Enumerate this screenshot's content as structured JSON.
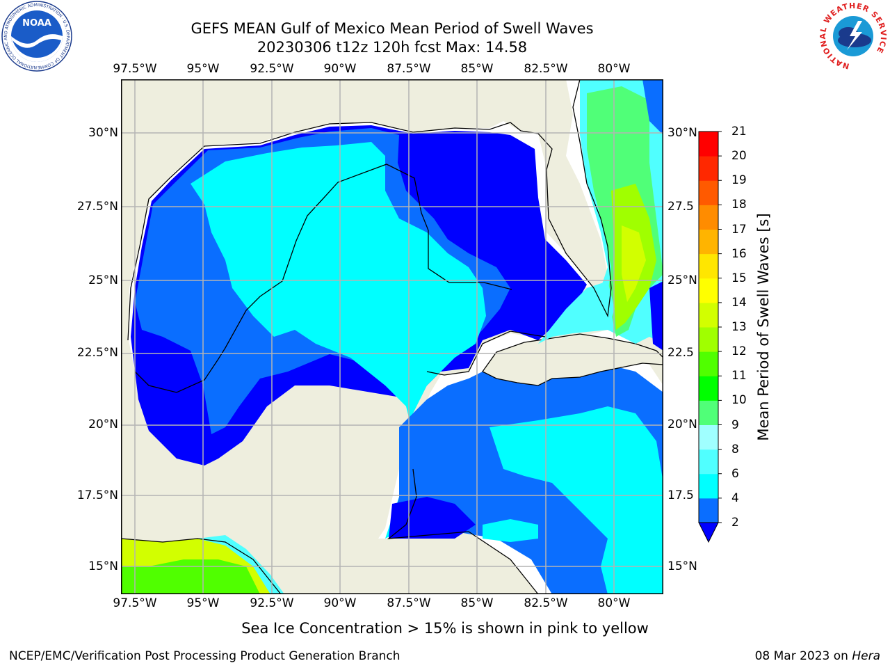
{
  "title": {
    "line1": "GEFS MEAN Gulf of Mexico Mean Period of Swell Waves",
    "line2": "20230306 t12z 120h fcst   Max: 14.58"
  },
  "map": {
    "x_ticks": [
      "97.5°W",
      "95°W",
      "92.5°W",
      "90°W",
      "87.5°W",
      "85°W",
      "82.5°W",
      "80°W"
    ],
    "y_ticks_left": [
      "30°N",
      "27.5°N",
      "25°N",
      "22.5°N",
      "20°N",
      "17.5°N",
      "15°N"
    ],
    "y_ticks_right": [
      "30°N",
      "27.5",
      "25°N",
      "22.5",
      "20°N",
      "17.5",
      "15°N"
    ]
  },
  "colorbar": {
    "title": "Mean Period of Swell Waves [s]",
    "labels": [
      "2",
      "4",
      "6",
      "8",
      "9",
      "10",
      "11",
      "12",
      "13",
      "14",
      "15",
      "16",
      "17",
      "18",
      "19",
      "20",
      "21"
    ],
    "colors": [
      "#0000ff",
      "#0a6eff",
      "#00ffff",
      "#50ffff",
      "#a0ffff",
      "#50ff78",
      "#00ff00",
      "#50ff00",
      "#a0ff00",
      "#d2ff00",
      "#ffff00",
      "#ffe600",
      "#ffb400",
      "#ff8c00",
      "#ff5a00",
      "#ff2800",
      "#ff0000"
    ],
    "under_color": "#0000ff"
  },
  "sea_ice_note": "Sea Ice Concentration > 15% is shown in pink to yellow",
  "footer": {
    "left": "NCEP/EMC/Verification Post Processing Product Generation Branch",
    "right_prefix": "08 Mar 2023 on ",
    "right_italic": "Hera"
  },
  "logos": {
    "left_text": "NOAA",
    "left_ring_text": "NATIONAL OCEANIC AND ATMOSPHERIC ADMINISTRATION · U.S. DEPARTMENT OF COMMERCE",
    "right_ring_text": "NATIONAL WEATHER SERVICE"
  }
}
